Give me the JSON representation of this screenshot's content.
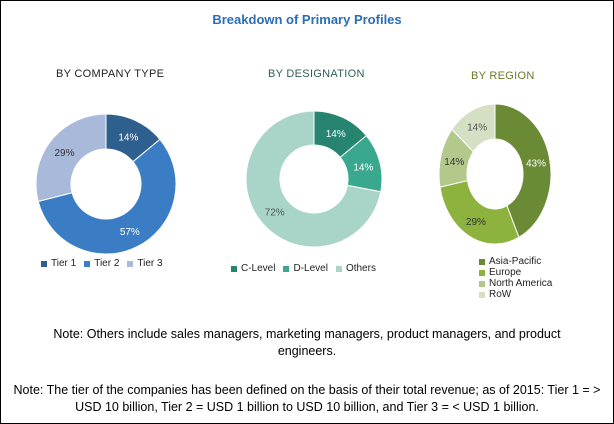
{
  "title": "Breakdown of Primary Profiles",
  "chart_data": [
    {
      "type": "pie",
      "title": "BY COMPANY TYPE",
      "title_color": "#222222",
      "donut": true,
      "categories": [
        "Tier 1",
        "Tier 2",
        "Tier 3"
      ],
      "values": [
        14,
        57,
        29
      ],
      "labels": [
        "14%",
        "57%",
        "29%"
      ],
      "colors": [
        "#2e5f8e",
        "#3a7dc4",
        "#a9b9d9"
      ],
      "legend": "bottom"
    },
    {
      "type": "pie",
      "title": "BY DESIGNATION",
      "title_color": "#2f5e5a",
      "donut": true,
      "categories": [
        "C-Level",
        "D-Level",
        "Others"
      ],
      "values": [
        14,
        14,
        72
      ],
      "labels": [
        "14%",
        "14%",
        "72%"
      ],
      "colors": [
        "#27846f",
        "#3aa88e",
        "#a8d5c8"
      ],
      "legend": "bottom"
    },
    {
      "type": "pie",
      "title": "BY REGION",
      "title_color": "#6b7a2a",
      "donut": true,
      "categories": [
        "Asia-Pacific",
        "Europe",
        "North America",
        "RoW"
      ],
      "values": [
        43,
        29,
        14,
        14
      ],
      "labels": [
        "43%",
        "29%",
        "14%",
        "14%"
      ],
      "colors": [
        "#6b8a35",
        "#8db33e",
        "#b2c98b",
        "#d5dfc3"
      ],
      "legend": "bottom"
    }
  ],
  "notes": [
    "Note: Others include sales managers, marketing managers, product managers, and product engineers.",
    "Note: The tier of the companies has been defined on the basis of their total revenue; as of 2015: Tier 1 = > USD 10 billion, Tier 2 = USD 1 billion to USD 10 billion, and Tier 3 = < USD 1 billion."
  ]
}
